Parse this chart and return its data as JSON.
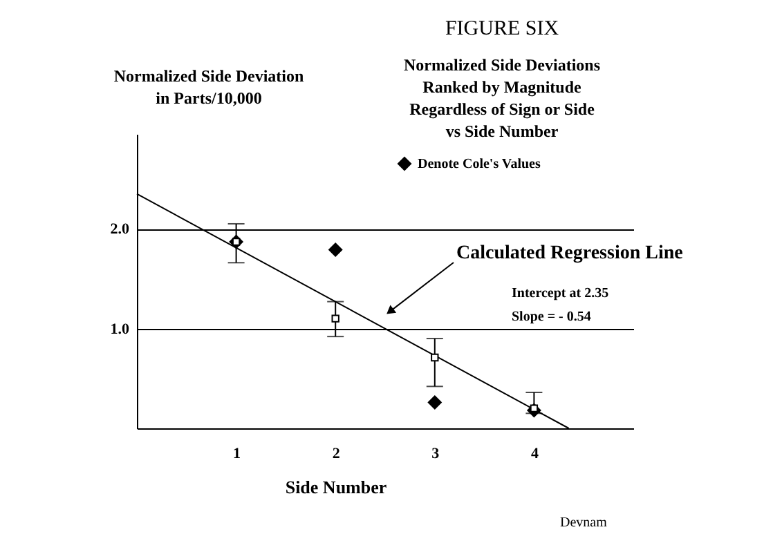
{
  "chart_data": {
    "type": "scatter",
    "title": "FIGURE SIX",
    "subtitle": "Normalized Side Deviations\nRanked by Magnitude\nRegardless of Sign or Side\nvs Side Number",
    "ylabel": "Normalized Side Deviation\nin Parts/10,000",
    "xlabel": "Side Number",
    "x": [
      1,
      2,
      3,
      4
    ],
    "xlim": [
      0,
      5
    ],
    "xticks": [
      1,
      2,
      3,
      4
    ],
    "ylim": [
      0,
      2.95
    ],
    "yticks": [
      {
        "value": 1,
        "label": "1.0"
      },
      {
        "value": 2,
        "label": "2.0"
      }
    ],
    "grid": "y",
    "legend": "top right",
    "series": [
      {
        "color": "#000000",
        "marker": "square",
        "values": [
          1.87,
          1.1,
          0.71,
          0.2
        ],
        "errors": [
          [
            1.66,
            2.05
          ],
          [
            0.92,
            1.27
          ],
          [
            0.42,
            0.9
          ],
          [
            0.15,
            0.36
          ]
        ]
      },
      {
        "name": "Denote Cole's Values",
        "color": "#000000",
        "marker": "diamond",
        "values": [
          1.87,
          1.79,
          0.26,
          0.18
        ]
      },
      {
        "type": "line",
        "x": [
          0,
          4.35
        ],
        "values": [
          2.35,
          0
        ],
        "color": "#000000",
        "marker": "none"
      }
    ],
    "annotations": [
      {
        "text": "Calculated Regression Line",
        "x": 2.56,
        "y": 1.18
      },
      "Intercept at 2.35",
      "Slope = - 0.54",
      "Devnam"
    ]
  }
}
